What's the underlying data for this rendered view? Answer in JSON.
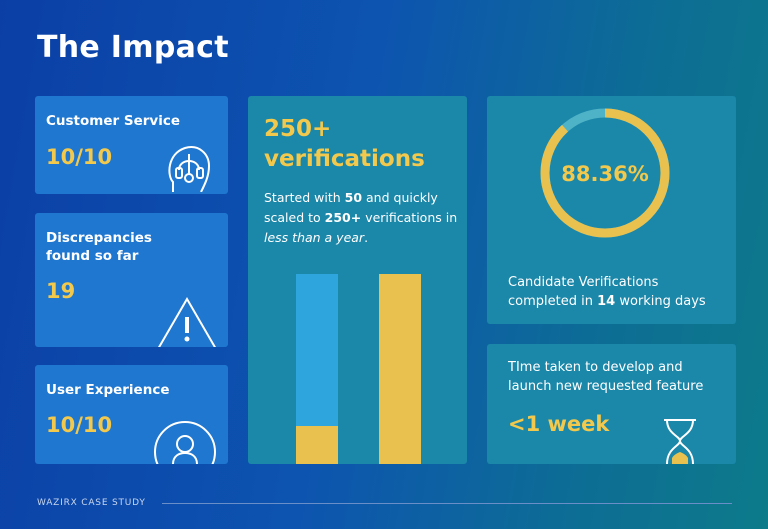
{
  "title": "The Impact",
  "customer_service": {
    "label": "Customer Service",
    "value": "10/10"
  },
  "discrepancies": {
    "label_line1": "Discrepancies",
    "label_line2": "found so far",
    "value": "19"
  },
  "user_experience": {
    "label": "User Experience",
    "value": "10/10"
  },
  "verifications": {
    "headline_line1": "250+",
    "headline_line2": "verifications",
    "desc": {
      "p1": "Started with ",
      "b1": "50",
      "p2": " and quickly scaled to ",
      "b2": "250+",
      "p3": " verifications in ",
      "i1": "less than a year",
      "p4": "."
    },
    "bars": [
      {
        "fill_fraction": 0.2,
        "top_color": "#2ea6dd",
        "bottom_color": "#e8c14f"
      },
      {
        "fill_fraction": 1.0,
        "top_color": "#e8c14f",
        "bottom_color": "#e8c14f"
      }
    ]
  },
  "candidate": {
    "percent_label": "88.36%",
    "percent_value": 88.36,
    "desc_line1": "Candidate Verifications",
    "desc_line2_pre": "completed in ",
    "desc_line2_bold": "14",
    "desc_line2_post": " working days"
  },
  "feature": {
    "desc_line1": "TIme taken to develop and",
    "desc_line2": "launch new requested feature",
    "value": "<1 week"
  },
  "footer": {
    "label": "WAZIRX CASE STUDY"
  },
  "colors": {
    "accent": "#f2c94c",
    "card_blue": "#1f77d0",
    "card_teal": "#1b87a9",
    "ring_track": "#4fb3c7"
  }
}
